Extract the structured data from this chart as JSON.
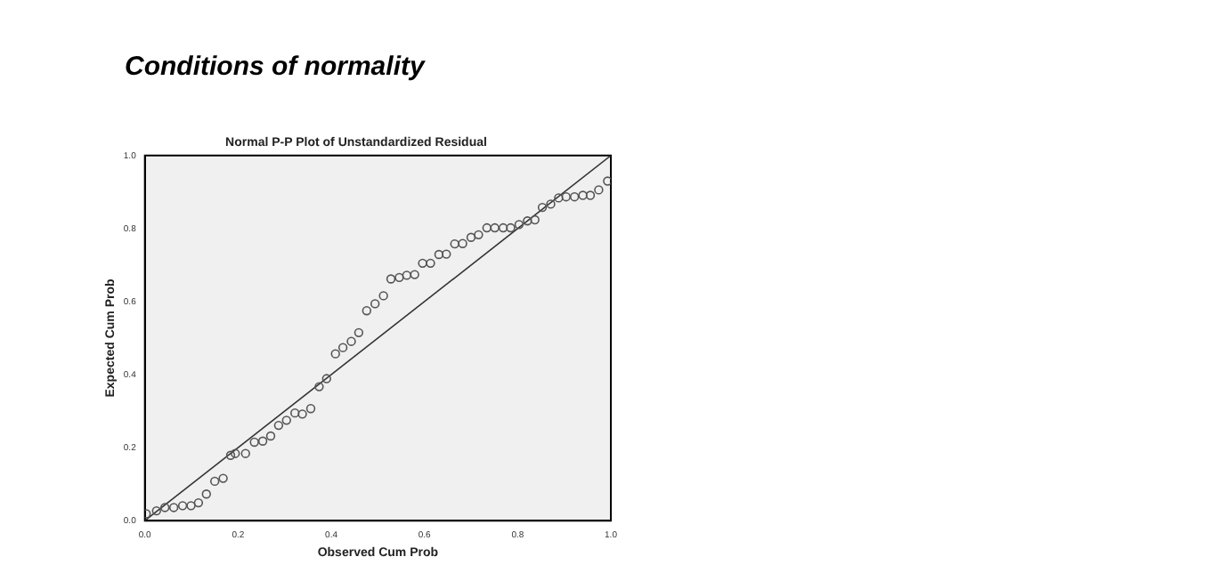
{
  "chart_data": {
    "type": "scatter",
    "title": "Conditions of normality",
    "subtitle": "Normal P-P Plot of Unstandardized Residual",
    "xlabel": "Observed Cum Prob",
    "ylabel": "Expected Cum Prob",
    "xlim": [
      0,
      1
    ],
    "ylim": [
      0,
      1
    ],
    "xticks": [
      {
        "value": 0,
        "label": "0.0"
      },
      {
        "value": 0.2,
        "label": "0.2"
      },
      {
        "value": 0.4,
        "label": "0.4"
      },
      {
        "value": 0.6,
        "label": "0.6"
      },
      {
        "value": 0.8,
        "label": "0.8"
      },
      {
        "value": 1,
        "label": "1.0"
      }
    ],
    "yticks": [
      {
        "value": 0,
        "label": "0.0"
      },
      {
        "value": 0.2,
        "label": "0.2"
      },
      {
        "value": 0.4,
        "label": "0.4"
      },
      {
        "value": 0.6,
        "label": "0.6"
      },
      {
        "value": 0.8,
        "label": "0.8"
      },
      {
        "value": 1,
        "label": "1.0"
      }
    ],
    "grid": false,
    "legend": false,
    "marker": "circle",
    "series": [
      {
        "color": "#555555",
        "x": [
          0.003,
          0.025,
          0.043,
          0.062,
          0.081,
          0.099,
          0.115,
          0.132,
          0.15,
          0.168,
          0.184,
          0.194,
          0.216,
          0.235,
          0.253,
          0.27,
          0.287,
          0.304,
          0.322,
          0.338,
          0.356,
          0.374,
          0.39,
          0.409,
          0.425,
          0.443,
          0.459,
          0.476,
          0.494,
          0.512,
          0.528,
          0.546,
          0.562,
          0.579,
          0.596,
          0.613,
          0.631,
          0.647,
          0.665,
          0.682,
          0.7,
          0.716,
          0.734,
          0.751,
          0.769,
          0.785,
          0.803,
          0.821,
          0.837,
          0.853,
          0.871,
          0.888,
          0.904,
          0.922,
          0.94,
          0.956,
          0.974,
          0.993
        ],
        "values": [
          0.019,
          0.027,
          0.036,
          0.036,
          0.041,
          0.041,
          0.049,
          0.073,
          0.108,
          0.116,
          0.179,
          0.184,
          0.184,
          0.215,
          0.218,
          0.232,
          0.261,
          0.275,
          0.295,
          0.292,
          0.307,
          0.367,
          0.389,
          0.457,
          0.474,
          0.491,
          0.515,
          0.575,
          0.594,
          0.616,
          0.662,
          0.666,
          0.672,
          0.674,
          0.705,
          0.705,
          0.729,
          0.73,
          0.758,
          0.759,
          0.776,
          0.783,
          0.802,
          0.802,
          0.802,
          0.802,
          0.811,
          0.821,
          0.824,
          0.858,
          0.867,
          0.884,
          0.887,
          0.887,
          0.891,
          0.891,
          0.906,
          0.93
        ]
      },
      {
        "type": "line",
        "color": "#333333",
        "marker": "none",
        "x": [
          0,
          1
        ],
        "values": [
          0,
          1
        ]
      }
    ]
  }
}
